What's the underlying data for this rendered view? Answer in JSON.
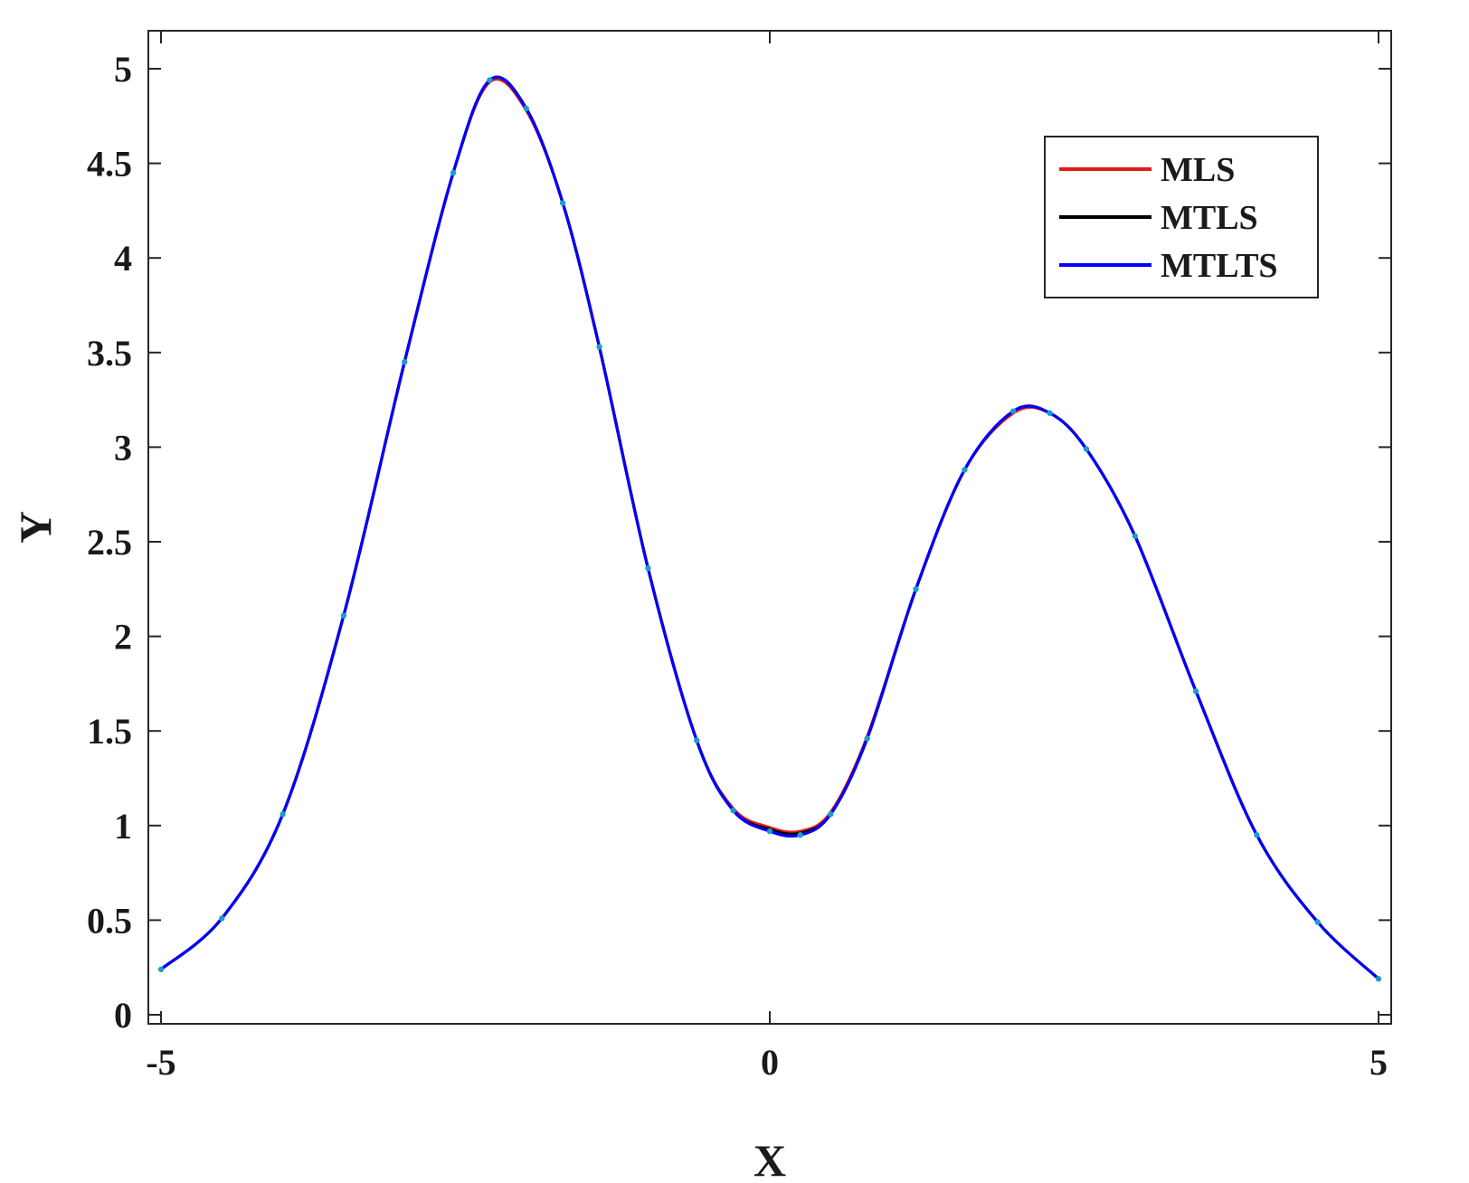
{
  "chart_data": {
    "type": "line",
    "title": "",
    "xlabel": "X",
    "ylabel": "Y",
    "xlim": [
      -5,
      5
    ],
    "ylim": [
      0,
      5.2
    ],
    "xticks": [
      -5,
      0,
      5
    ],
    "xtick_labels": [
      "-5",
      "0",
      "5"
    ],
    "yticks": [
      0,
      0.5,
      1,
      1.5,
      2,
      2.5,
      3,
      3.5,
      4,
      4.5,
      5
    ],
    "ytick_labels": [
      "0",
      "0.5",
      "1",
      "1.5",
      "2",
      "2.5",
      "3",
      "3.5",
      "4",
      "4.5",
      "5"
    ],
    "grid": false,
    "legend_position": "top-right",
    "x": [
      -5.0,
      -4.5,
      -4.0,
      -3.5,
      -3.0,
      -2.6,
      -2.3,
      -2.0,
      -1.7,
      -1.4,
      -1.0,
      -0.6,
      -0.3,
      0.0,
      0.25,
      0.5,
      0.8,
      1.2,
      1.6,
      2.0,
      2.3,
      2.6,
      3.0,
      3.5,
      4.0,
      4.5,
      5.0
    ],
    "series": [
      {
        "name": "MLS",
        "color": "#e41a1c",
        "values": [
          0.24,
          0.51,
          1.06,
          2.11,
          3.45,
          4.45,
          4.93,
          4.78,
          4.29,
          3.53,
          2.36,
          1.45,
          1.09,
          0.99,
          0.97,
          1.07,
          1.47,
          2.25,
          2.88,
          3.18,
          3.18,
          2.99,
          2.53,
          1.71,
          0.95,
          0.49,
          0.19
        ]
      },
      {
        "name": "MTLS",
        "color": "#000000",
        "values": [
          0.24,
          0.51,
          1.06,
          2.11,
          3.45,
          4.45,
          4.94,
          4.79,
          4.29,
          3.53,
          2.36,
          1.45,
          1.08,
          0.98,
          0.96,
          1.06,
          1.46,
          2.25,
          2.88,
          3.19,
          3.18,
          2.99,
          2.53,
          1.71,
          0.95,
          0.49,
          0.19
        ]
      },
      {
        "name": "MTLTS",
        "color": "#0000ff",
        "values": [
          0.24,
          0.51,
          1.06,
          2.11,
          3.45,
          4.45,
          4.94,
          4.79,
          4.29,
          3.53,
          2.36,
          1.45,
          1.08,
          0.97,
          0.95,
          1.06,
          1.46,
          2.25,
          2.88,
          3.19,
          3.18,
          2.99,
          2.53,
          1.71,
          0.95,
          0.49,
          0.19
        ]
      }
    ],
    "scatter_color": "#1a9ec9"
  }
}
